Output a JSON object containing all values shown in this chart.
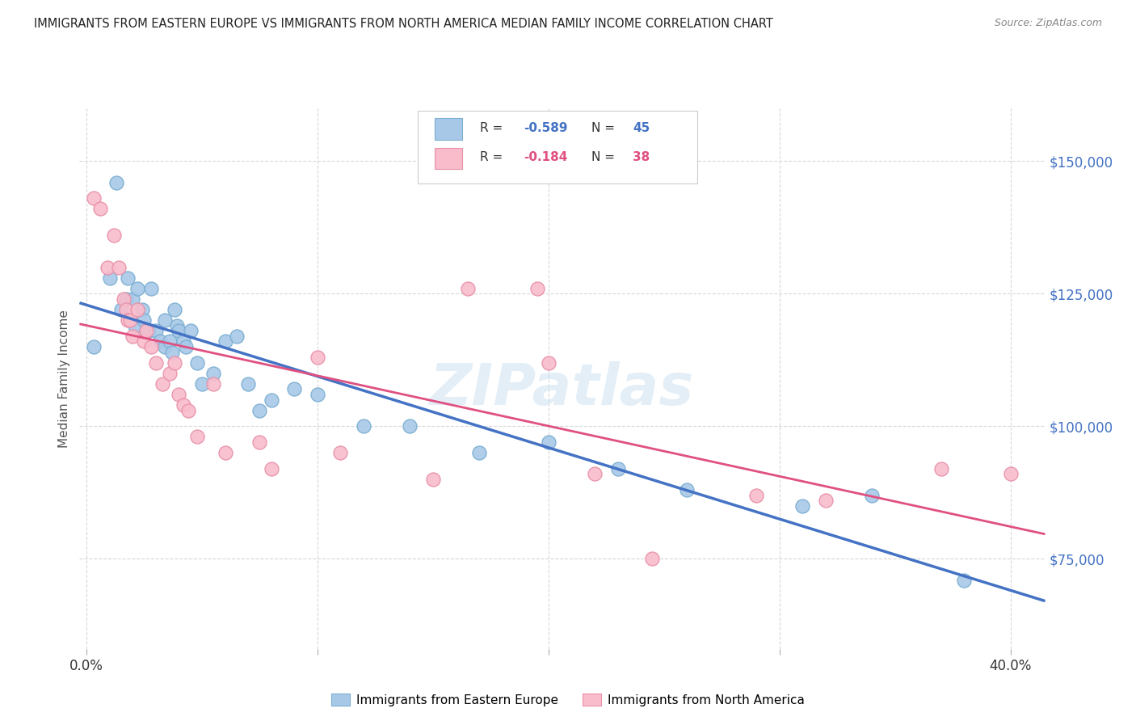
{
  "title": "IMMIGRANTS FROM EASTERN EUROPE VS IMMIGRANTS FROM NORTH AMERICA MEDIAN FAMILY INCOME CORRELATION CHART",
  "source": "Source: ZipAtlas.com",
  "ylabel": "Median Family Income",
  "ytick_labels": [
    "$75,000",
    "$100,000",
    "$125,000",
    "$150,000"
  ],
  "ytick_values": [
    75000,
    100000,
    125000,
    150000
  ],
  "ymin": 58000,
  "ymax": 160000,
  "xmin": -0.003,
  "xmax": 0.415,
  "series1_color": "#a8c8e8",
  "series1_edge": "#7aaed0",
  "series2_color": "#f9bccb",
  "series2_edge": "#e890a8",
  "line1_color": "#4472c4",
  "line2_color": "#e05080",
  "label1": "Immigrants from Eastern Europe",
  "label2": "Immigrants from North America",
  "watermark": "ZIPatlas",
  "background_color": "#ffffff",
  "grid_color": "#d8d8d8",
  "axis_label_color": "#4472c4",
  "title_color": "#222222",
  "legend_r1": "R = ",
  "legend_v1": "-0.589",
  "legend_n1": "N = ",
  "legend_n1v": "45",
  "legend_r2": "R = ",
  "legend_v2": "-0.184",
  "legend_n2": "N = ",
  "legend_n2v": "38",
  "blue_scatter_x": [
    0.003,
    0.01,
    0.013,
    0.015,
    0.017,
    0.018,
    0.02,
    0.021,
    0.022,
    0.024,
    0.025,
    0.026,
    0.027,
    0.028,
    0.03,
    0.032,
    0.034,
    0.034,
    0.036,
    0.037,
    0.038,
    0.039,
    0.04,
    0.042,
    0.043,
    0.045,
    0.048,
    0.05,
    0.055,
    0.06,
    0.065,
    0.07,
    0.075,
    0.08,
    0.09,
    0.1,
    0.12,
    0.14,
    0.17,
    0.2,
    0.23,
    0.26,
    0.31,
    0.34,
    0.38
  ],
  "blue_scatter_y": [
    115000,
    128000,
    146000,
    122000,
    124000,
    128000,
    124000,
    119000,
    126000,
    122000,
    120000,
    118000,
    118000,
    126000,
    118000,
    116000,
    120000,
    115000,
    116000,
    114000,
    122000,
    119000,
    118000,
    116000,
    115000,
    118000,
    112000,
    108000,
    110000,
    116000,
    117000,
    108000,
    103000,
    105000,
    107000,
    106000,
    100000,
    100000,
    95000,
    97000,
    92000,
    88000,
    85000,
    87000,
    71000
  ],
  "pink_scatter_x": [
    0.003,
    0.006,
    0.009,
    0.012,
    0.014,
    0.016,
    0.017,
    0.018,
    0.019,
    0.02,
    0.022,
    0.025,
    0.026,
    0.028,
    0.03,
    0.033,
    0.036,
    0.038,
    0.04,
    0.042,
    0.044,
    0.048,
    0.055,
    0.06,
    0.075,
    0.08,
    0.1,
    0.11,
    0.15,
    0.165,
    0.195,
    0.2,
    0.22,
    0.245,
    0.29,
    0.32,
    0.37,
    0.4
  ],
  "pink_scatter_y": [
    143000,
    141000,
    130000,
    136000,
    130000,
    124000,
    122000,
    120000,
    120000,
    117000,
    122000,
    116000,
    118000,
    115000,
    112000,
    108000,
    110000,
    112000,
    106000,
    104000,
    103000,
    98000,
    108000,
    95000,
    97000,
    92000,
    113000,
    95000,
    90000,
    126000,
    126000,
    112000,
    91000,
    75000,
    87000,
    86000,
    92000,
    91000
  ]
}
